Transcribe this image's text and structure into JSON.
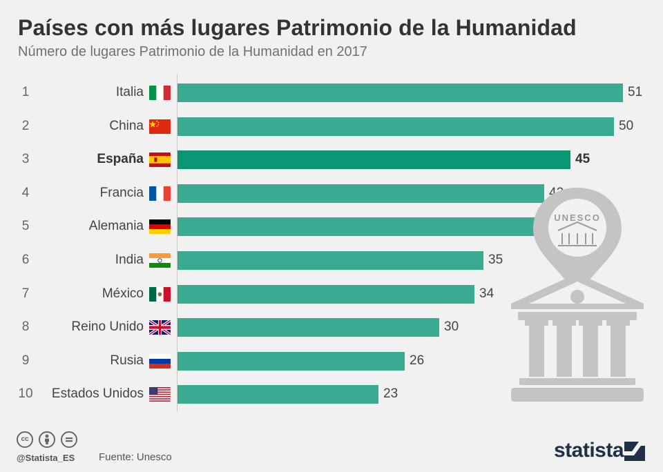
{
  "header": {
    "title": "Países con más lugares Patrimonio de la Humanidad",
    "subtitle": "Número de lugares Patrimonio de la Humanidad en 2017"
  },
  "chart_data": {
    "type": "bar",
    "orientation": "horizontal",
    "title": "Países con más lugares Patrimonio de la Humanidad",
    "subtitle": "Número de lugares Patrimonio de la Humanidad en 2017",
    "xlabel": "",
    "ylabel": "",
    "xlim": [
      0,
      51
    ],
    "highlight_category": "España",
    "colors": {
      "bar": "#3aab91",
      "highlight": "#0a9672"
    },
    "rows": [
      {
        "rank": "1",
        "country": "Italia",
        "flag": "italy-flag-icon",
        "value": 51
      },
      {
        "rank": "2",
        "country": "China",
        "flag": "china-flag-icon",
        "value": 50
      },
      {
        "rank": "3",
        "country": "España",
        "flag": "spain-flag-icon",
        "value": 45
      },
      {
        "rank": "4",
        "country": "Francia",
        "flag": "france-flag-icon",
        "value": 42
      },
      {
        "rank": "5",
        "country": "Alemania",
        "flag": "germany-flag-icon",
        "value": 41
      },
      {
        "rank": "6",
        "country": "India",
        "flag": "india-flag-icon",
        "value": 35
      },
      {
        "rank": "7",
        "country": "México",
        "flag": "mexico-flag-icon",
        "value": 34
      },
      {
        "rank": "8",
        "country": "Reino Unido",
        "flag": "uk-flag-icon",
        "value": 30
      },
      {
        "rank": "9",
        "country": "Rusia",
        "flag": "russia-flag-icon",
        "value": 26
      },
      {
        "rank": "10",
        "country": "Estados Unidos",
        "flag": "usa-flag-icon",
        "value": 23
      }
    ]
  },
  "illustration": {
    "label": "UNESCO",
    "icon": "unesco-temple-pin-icon",
    "color": "#c4c4c4"
  },
  "footer": {
    "license_icons": [
      "cc-icon",
      "attribution-icon",
      "no-derivatives-icon"
    ],
    "cc_text": "cc",
    "handle": "@Statista_ES",
    "source_label": "Fuente:",
    "source_value": "Unesco",
    "brand": "statista"
  }
}
